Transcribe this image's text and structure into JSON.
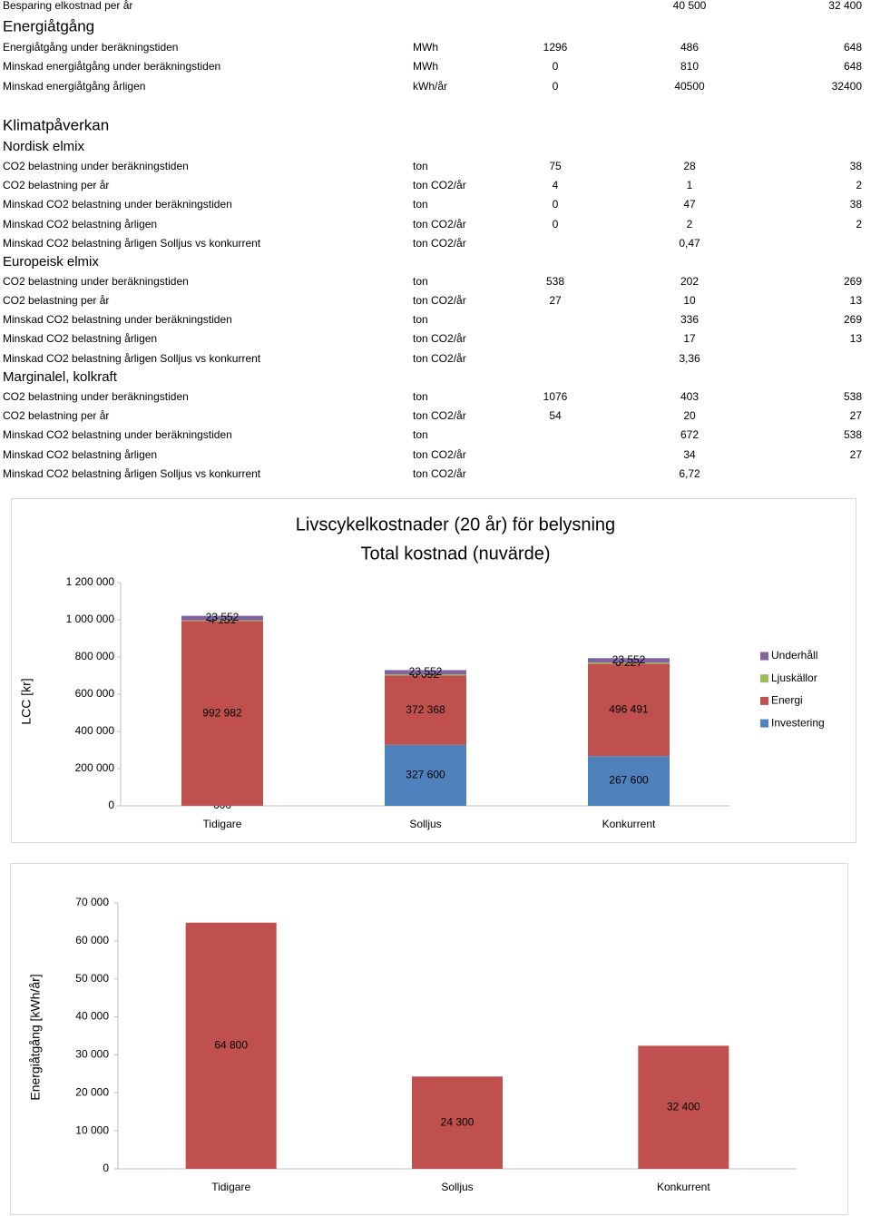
{
  "document": {
    "rows": [
      {
        "cells": [
          "Besparing elkostnad per år",
          null,
          null,
          "40 500",
          "32 400"
        ]
      },
      {
        "heading": "Energiåtgång"
      },
      {
        "cells": [
          "Energiåtgång under beräkningstiden",
          "MWh",
          "1296",
          "486",
          "648"
        ]
      },
      {
        "cells": [
          "Minskad energiåtgång under beräkningstiden",
          "MWh",
          "0",
          "810",
          "648"
        ]
      },
      {
        "cells": [
          "Minskad energiåtgång årligen",
          "kWh/år",
          "0",
          "40500",
          "32400"
        ]
      },
      {
        "heading": "Klimatpåverkan"
      },
      {
        "subheading": "Nordisk elmix"
      },
      {
        "cells": [
          "CO2 belastning under beräkningstiden",
          "ton",
          "75",
          "28",
          "38"
        ]
      },
      {
        "cells": [
          "CO2 belastning per år",
          "ton CO2/år",
          "4",
          "1",
          "2"
        ]
      },
      {
        "cells": [
          "Minskad CO2 belastning under beräkningstiden",
          "ton",
          "0",
          "47",
          "38"
        ]
      },
      {
        "cells": [
          "Minskad CO2 belastning årligen",
          "ton CO2/år",
          "0",
          "2",
          "2"
        ]
      },
      {
        "cells": [
          "Minskad CO2 belastning årligen  Solljus vs konkurrent",
          "ton CO2/år",
          null,
          "0,47",
          null
        ]
      },
      {
        "subheading": "Europeisk elmix"
      },
      {
        "cells": [
          "CO2 belastning under beräkningstiden",
          "ton",
          "538",
          "202",
          "269"
        ]
      },
      {
        "cells": [
          "CO2 belastning per år",
          "ton CO2/år",
          "27",
          "10",
          "13"
        ]
      },
      {
        "cells": [
          "Minskad CO2 belastning under beräkningstiden",
          "ton",
          null,
          "336",
          "269"
        ]
      },
      {
        "cells": [
          "Minskad CO2 belastning årligen",
          "ton CO2/år",
          null,
          "17",
          "13"
        ]
      },
      {
        "cells": [
          "Minskad CO2 belastning årligen  Solljus vs konkurrent",
          "ton CO2/år",
          null,
          "3,36",
          null
        ]
      },
      {
        "subheading": "Marginalel, kolkraft"
      },
      {
        "cells": [
          "CO2 belastning under beräkningstiden",
          "ton",
          "1076",
          "403",
          "538"
        ]
      },
      {
        "cells": [
          "CO2 belastning per år",
          "ton CO2/år",
          "54",
          "20",
          "27"
        ]
      },
      {
        "cells": [
          "Minskad CO2 belastning under beräkningstiden",
          "ton",
          null,
          "672",
          "538"
        ]
      },
      {
        "cells": [
          "Minskad CO2 belastning årligen",
          "ton CO2/år",
          null,
          "34",
          "27"
        ]
      },
      {
        "cells": [
          "Minskad CO2 belastning årligen  Solljus vs konkurrent",
          "ton CO2/år",
          null,
          "6,72",
          null
        ]
      }
    ]
  },
  "chart_data": [
    {
      "type": "stacked_bar",
      "title": "Livscykelkostnader (20 år) för belysning",
      "subtitle": "Total kostnad (nuvärde)",
      "y_label": "LCC [kr]",
      "categories": [
        "Tidigare",
        "Solljus",
        "Konkurrent"
      ],
      "series": [
        {
          "name": "Investering",
          "color": "#4f81bd",
          "values": [
            600,
            327600,
            267600
          ],
          "value_labels": [
            "600",
            "327 600",
            "267 600"
          ]
        },
        {
          "name": "Energi",
          "color": "#c0504d",
          "values": [
            992982,
            372368,
            496491
          ],
          "value_labels": [
            "992 982",
            "372 368",
            "496 491"
          ]
        },
        {
          "name": "Ljuskällor",
          "color": "#9bbb59",
          "values": [
            4151,
            6092,
            6227
          ],
          "value_labels": [
            "4 151",
            "6 092",
            "6 227"
          ]
        },
        {
          "name": "Underhåll",
          "color": "#8064a2",
          "values": [
            23552,
            23552,
            23552
          ],
          "value_labels": [
            "23 552",
            "23 552",
            "23 552"
          ]
        }
      ],
      "ylim": [
        0,
        1200000
      ],
      "yticks": [
        0,
        {
          "value": 200000,
          "label": "200 000"
        },
        {
          "value": 400000,
          "label": "400 000"
        },
        {
          "value": 600000,
          "label": "600 000"
        },
        {
          "value": 800000,
          "label": "800 000"
        },
        {
          "value": 1000000,
          "label": "1 000 000"
        },
        {
          "value": 1200000,
          "label": "1 200 000"
        }
      ],
      "legend": "right"
    },
    {
      "type": "bar",
      "y_label": "Energiåtgång  [kWh/år]",
      "categories": [
        "Tidigare",
        "Solljus",
        "Konkurrent"
      ],
      "values": [
        64800,
        24300,
        32400
      ],
      "value_labels": [
        "64 800",
        "24 300",
        "32 400"
      ],
      "color": "#c0504d",
      "ylim": [
        0,
        70000
      ],
      "yticks": [
        0,
        {
          "value": 10000,
          "label": "10 000"
        },
        {
          "value": 20000,
          "label": "20 000"
        },
        {
          "value": 30000,
          "label": "30 000"
        },
        {
          "value": 40000,
          "label": "40 000"
        },
        {
          "value": 50000,
          "label": "50 000"
        },
        {
          "value": 60000,
          "label": "60 000"
        },
        {
          "value": 70000,
          "label": "70 000"
        }
      ]
    }
  ]
}
